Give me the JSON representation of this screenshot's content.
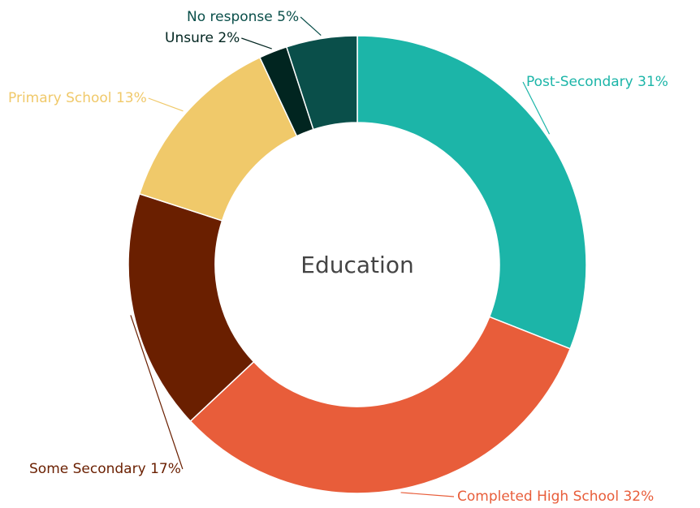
{
  "chart_data": {
    "type": "donut",
    "title": "Education",
    "categories": [
      "Post-Secondary",
      "Completed High School",
      "Some Secondary",
      "Primary School",
      "Unsure",
      "No response"
    ],
    "values": [
      31,
      32,
      17,
      13,
      2,
      5
    ],
    "value_labels": [
      "31%",
      "32%",
      "17%",
      "13%",
      "2%",
      "5%"
    ],
    "colors": [
      "#1cb5a8",
      "#e85d3a",
      "#6a1f00",
      "#f0c96a",
      "#012520",
      "#0a4f4a"
    ]
  }
}
